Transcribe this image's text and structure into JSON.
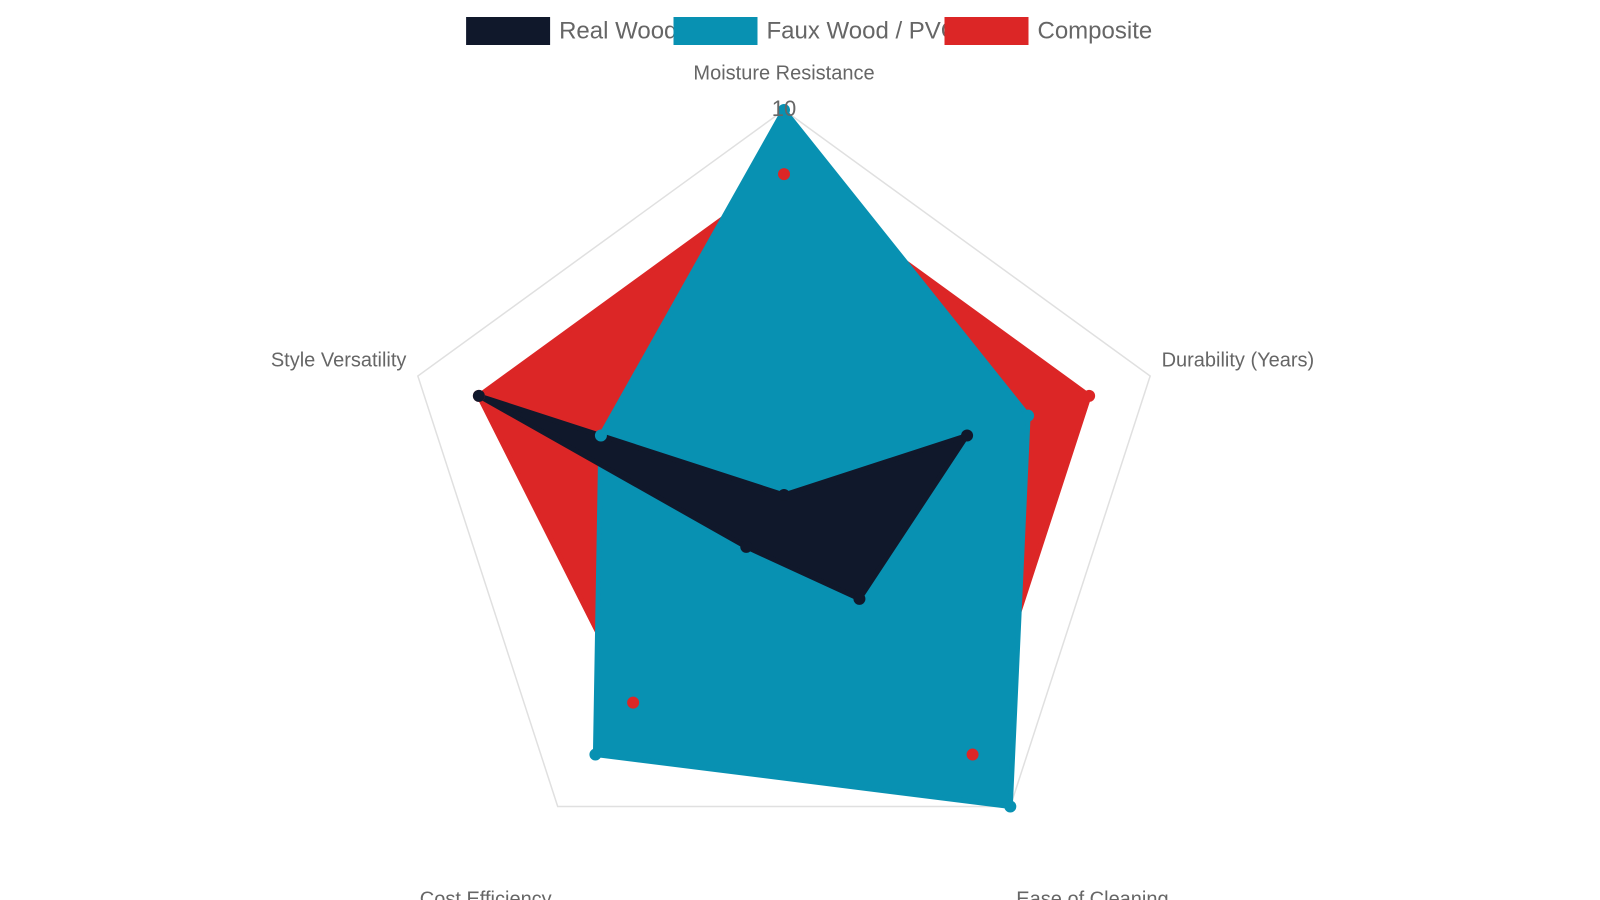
{
  "chart_data": {
    "type": "radar",
    "categories": [
      "Moisture Resistance",
      "Durability (Years)",
      "Ease of Cleaning",
      "Cost Efficiency",
      "Style Versatility"
    ],
    "series": [
      {
        "name": "Real Wood",
        "color": "#10182b",
        "values": [
          4,
          7,
          6,
          5,
          9
        ]
      },
      {
        "name": "Faux Wood / PVC",
        "color": "#0891b2",
        "values": [
          10,
          8,
          10,
          9,
          7
        ]
      },
      {
        "name": "Composite",
        "color": "#dc2626",
        "values": [
          9,
          9,
          9,
          8,
          9
        ]
      }
    ],
    "rlim": [
      4,
      10
    ],
    "rticks": [
      10
    ],
    "legend": "top"
  }
}
